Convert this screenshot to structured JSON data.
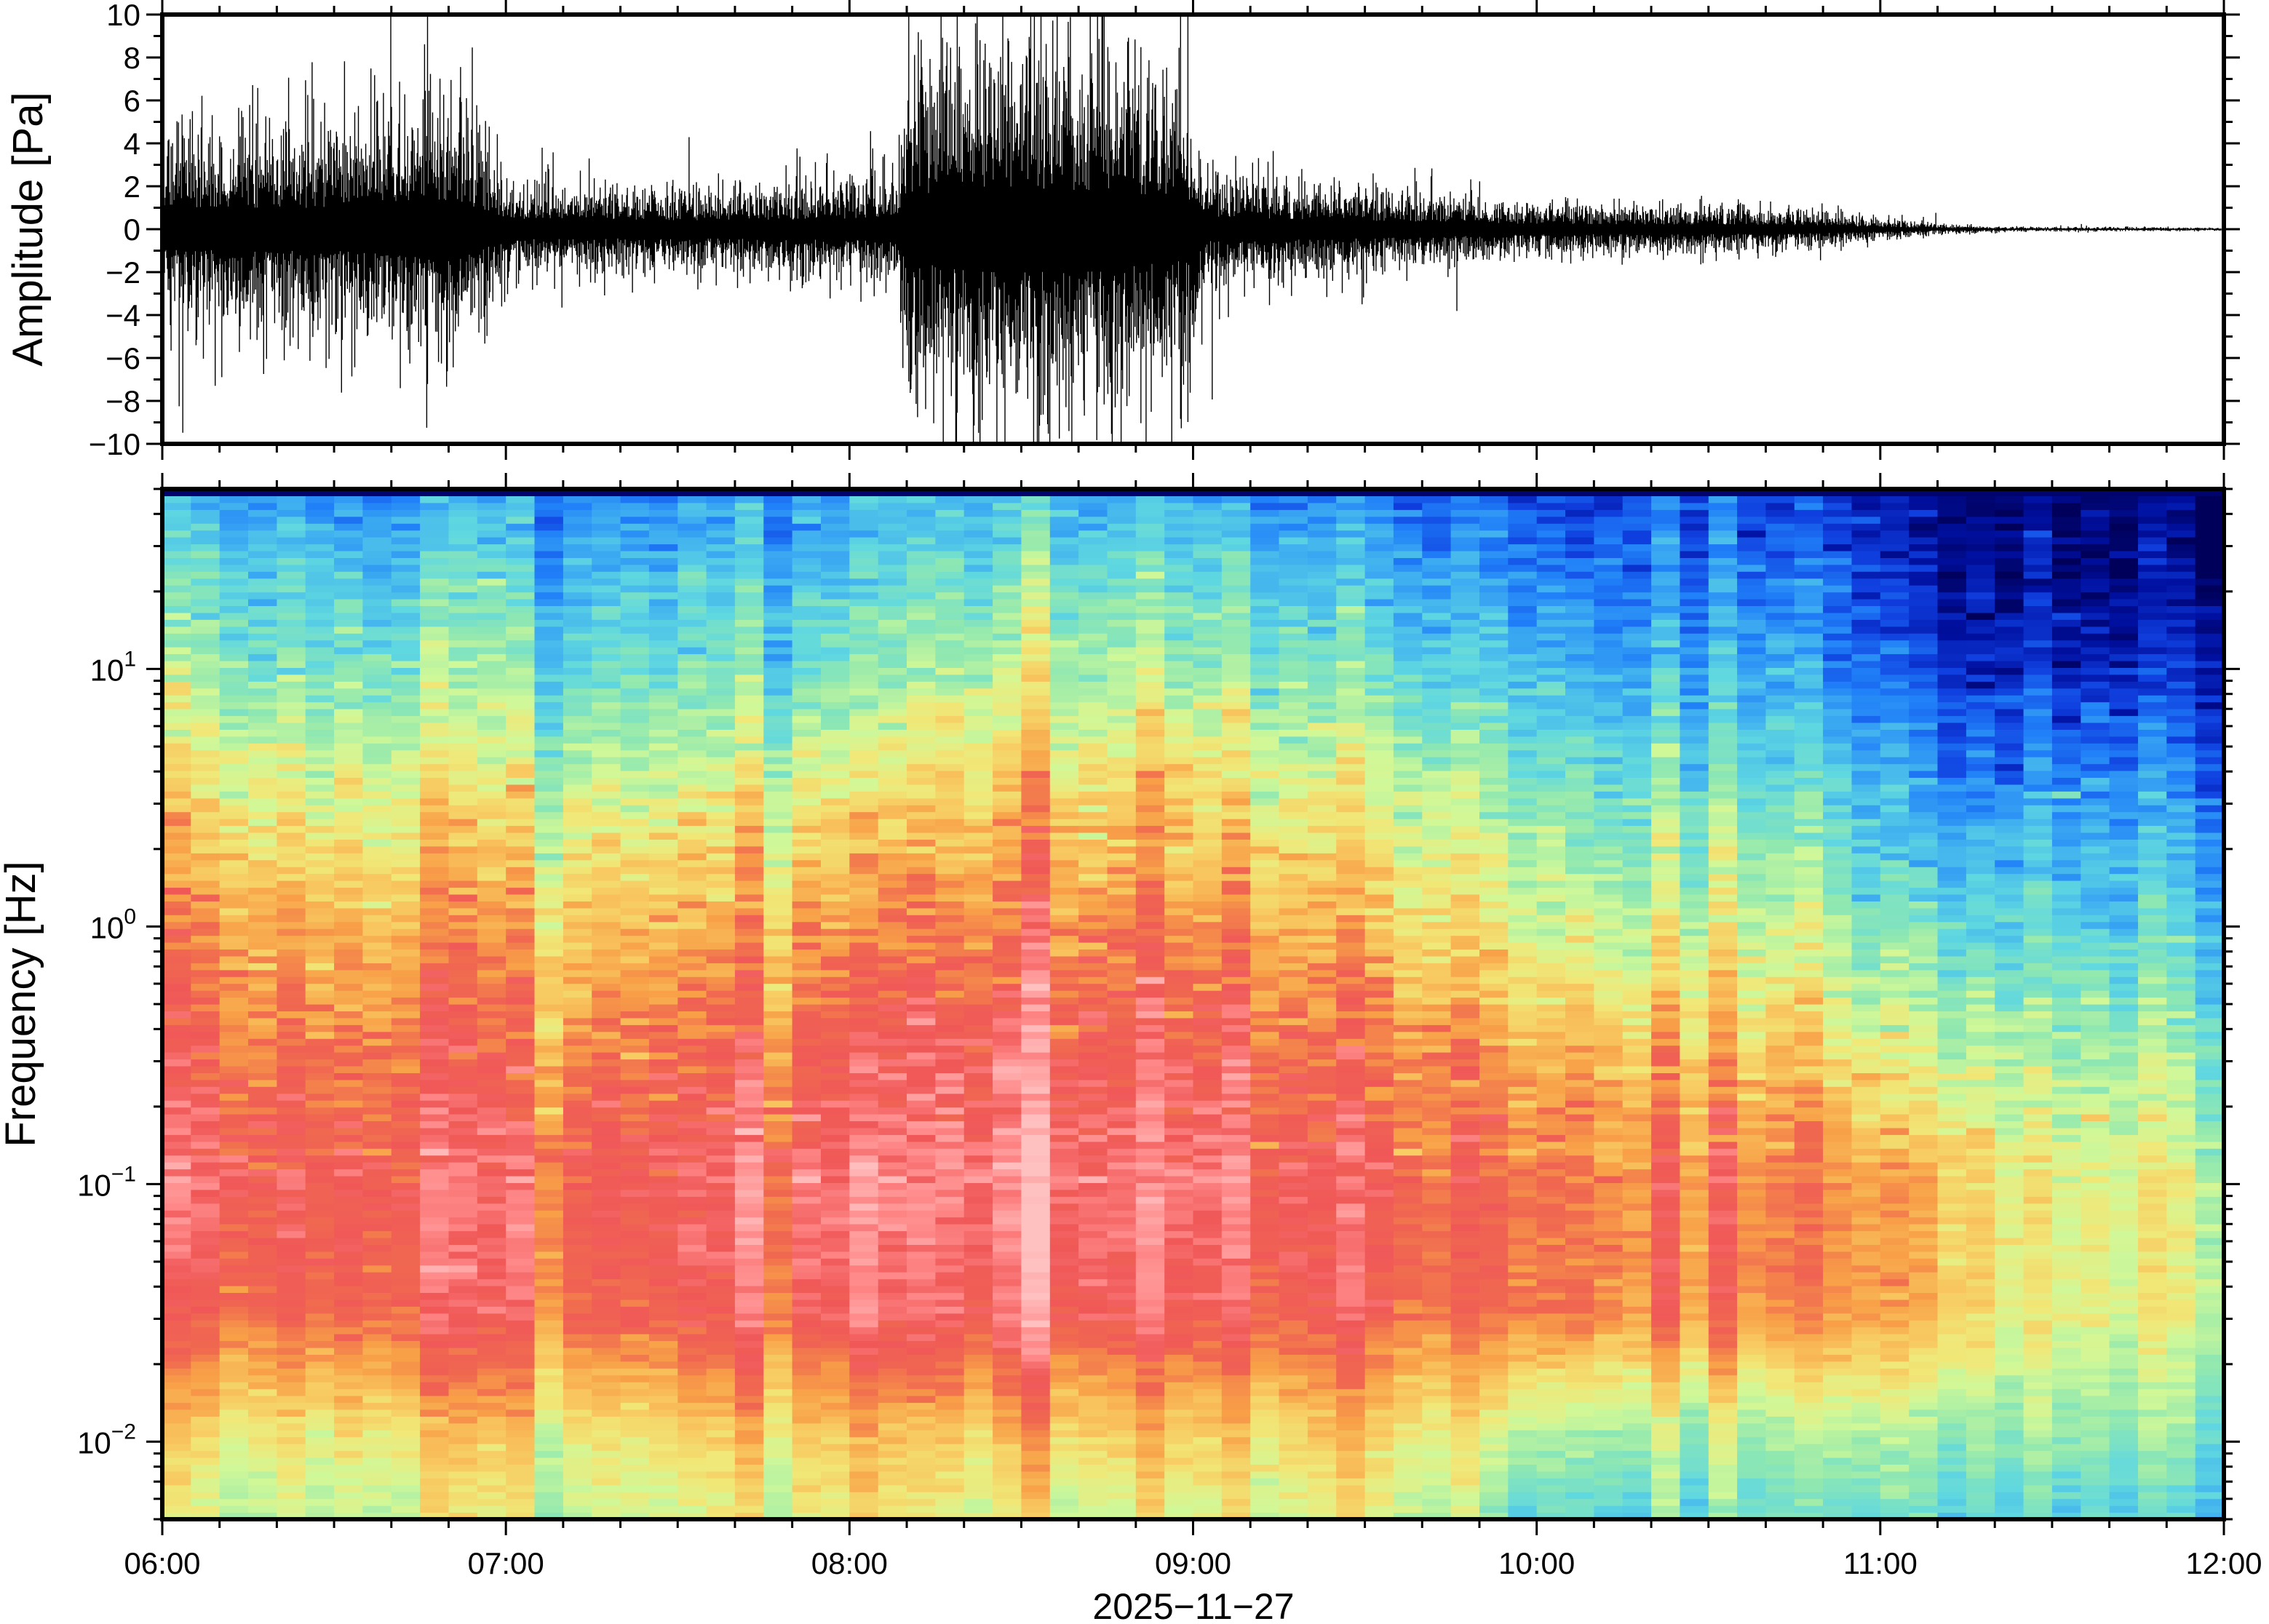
{
  "chart_data": [
    {
      "type": "line",
      "title": "",
      "ylabel": "Amplitude [Pa]",
      "ylim": [
        -10,
        10
      ],
      "yticks": [
        "−10",
        "−8",
        "−6",
        "−4",
        "−2",
        "0",
        "2",
        "4",
        "6",
        "8",
        "10"
      ],
      "ytick_values": [
        -10,
        -8,
        -6,
        -4,
        -2,
        0,
        2,
        4,
        6,
        8,
        10
      ],
      "x_range_minutes_after_0600": [
        0,
        360
      ],
      "amplitude_envelope_pa": {
        "minutes": [
          0,
          30,
          50,
          55,
          60,
          90,
          120,
          128,
          130,
          150,
          165,
          180,
          182,
          210,
          240,
          270,
          290,
          300,
          310,
          320,
          360
        ],
        "values": [
          2.4,
          2.5,
          3.4,
          2.4,
          1.2,
          1.0,
          1.2,
          1.4,
          4.0,
          4.8,
          4.4,
          3.4,
          1.4,
          1.0,
          0.6,
          0.55,
          0.45,
          0.25,
          0.15,
          0.06,
          0.04
        ]
      },
      "grid": false
    },
    {
      "type": "heatmap",
      "title": "",
      "ylabel": "Frequency [Hz]",
      "yscale": "log",
      "ylim": [
        0.005,
        50
      ],
      "yticks": [
        {
          "base": "10",
          "exp": "1",
          "value": 10
        },
        {
          "base": "10",
          "exp": "0",
          "value": 1
        },
        {
          "base": "10",
          "exp": "−1",
          "value": 0.1
        },
        {
          "base": "10",
          "exp": "−2",
          "value": 0.01
        }
      ],
      "xlabel": "2025−11−27",
      "xticks": [
        "06:00",
        "07:00",
        "08:00",
        "09:00",
        "10:00",
        "11:00",
        "12:00"
      ],
      "column_minutes": 5,
      "profile_log10_freq": [
        -2.3,
        -2,
        -1.5,
        -1,
        -0.5,
        0,
        0.5,
        1,
        1.5,
        1.7
      ],
      "profiles": [
        {
          "minute": 0,
          "levels": [
            0.55,
            0.62,
            0.82,
            0.88,
            0.82,
            0.74,
            0.64,
            0.5,
            0.38,
            0.3
          ]
        },
        {
          "minute": 60,
          "levels": [
            0.58,
            0.64,
            0.84,
            0.86,
            0.8,
            0.72,
            0.6,
            0.46,
            0.34,
            0.28
          ]
        },
        {
          "minute": 125,
          "levels": [
            0.6,
            0.66,
            0.86,
            0.9,
            0.82,
            0.73,
            0.6,
            0.44,
            0.32,
            0.28
          ]
        },
        {
          "minute": 130,
          "levels": [
            0.62,
            0.7,
            0.9,
            0.94,
            0.9,
            0.8,
            0.7,
            0.55,
            0.42,
            0.35
          ]
        },
        {
          "minute": 160,
          "levels": [
            0.62,
            0.7,
            0.92,
            0.96,
            0.92,
            0.82,
            0.72,
            0.58,
            0.44,
            0.36
          ]
        },
        {
          "minute": 195,
          "levels": [
            0.6,
            0.66,
            0.86,
            0.9,
            0.84,
            0.74,
            0.64,
            0.5,
            0.36,
            0.3
          ]
        },
        {
          "minute": 200,
          "levels": [
            0.6,
            0.66,
            0.84,
            0.86,
            0.8,
            0.7,
            0.6,
            0.45,
            0.3,
            0.25
          ]
        },
        {
          "minute": 230,
          "levels": [
            0.55,
            0.62,
            0.82,
            0.84,
            0.78,
            0.66,
            0.56,
            0.42,
            0.28,
            0.22
          ]
        },
        {
          "minute": 235,
          "levels": [
            0.42,
            0.52,
            0.8,
            0.8,
            0.72,
            0.58,
            0.48,
            0.35,
            0.22,
            0.18
          ]
        },
        {
          "minute": 290,
          "levels": [
            0.42,
            0.5,
            0.76,
            0.78,
            0.68,
            0.55,
            0.44,
            0.3,
            0.2,
            0.16
          ]
        },
        {
          "minute": 295,
          "levels": [
            0.42,
            0.5,
            0.72,
            0.72,
            0.6,
            0.46,
            0.34,
            0.22,
            0.12,
            0.1
          ]
        },
        {
          "minute": 315,
          "levels": [
            0.42,
            0.5,
            0.7,
            0.7,
            0.56,
            0.42,
            0.28,
            0.14,
            0.06,
            0.05
          ]
        },
        {
          "minute": 320,
          "levels": [
            0.38,
            0.46,
            0.58,
            0.58,
            0.5,
            0.38,
            0.26,
            0.1,
            0.03,
            0.02
          ]
        },
        {
          "minute": 360,
          "levels": [
            0.4,
            0.48,
            0.6,
            0.6,
            0.52,
            0.4,
            0.3,
            0.14,
            0.04,
            0.03
          ]
        }
      ],
      "colormap": [
        [
          0.0,
          "#00005a"
        ],
        [
          0.08,
          "#0010a0"
        ],
        [
          0.16,
          "#1040e0"
        ],
        [
          0.24,
          "#2080f8"
        ],
        [
          0.32,
          "#40b0f0"
        ],
        [
          0.4,
          "#60d8e0"
        ],
        [
          0.48,
          "#90e8b0"
        ],
        [
          0.56,
          "#d0f898"
        ],
        [
          0.62,
          "#f0e878"
        ],
        [
          0.68,
          "#f8c860"
        ],
        [
          0.74,
          "#f8a048"
        ],
        [
          0.8,
          "#f06850"
        ],
        [
          0.86,
          "#f05858"
        ],
        [
          0.92,
          "#ff8888"
        ],
        [
          1.0,
          "#ffc0c0"
        ]
      ]
    }
  ]
}
